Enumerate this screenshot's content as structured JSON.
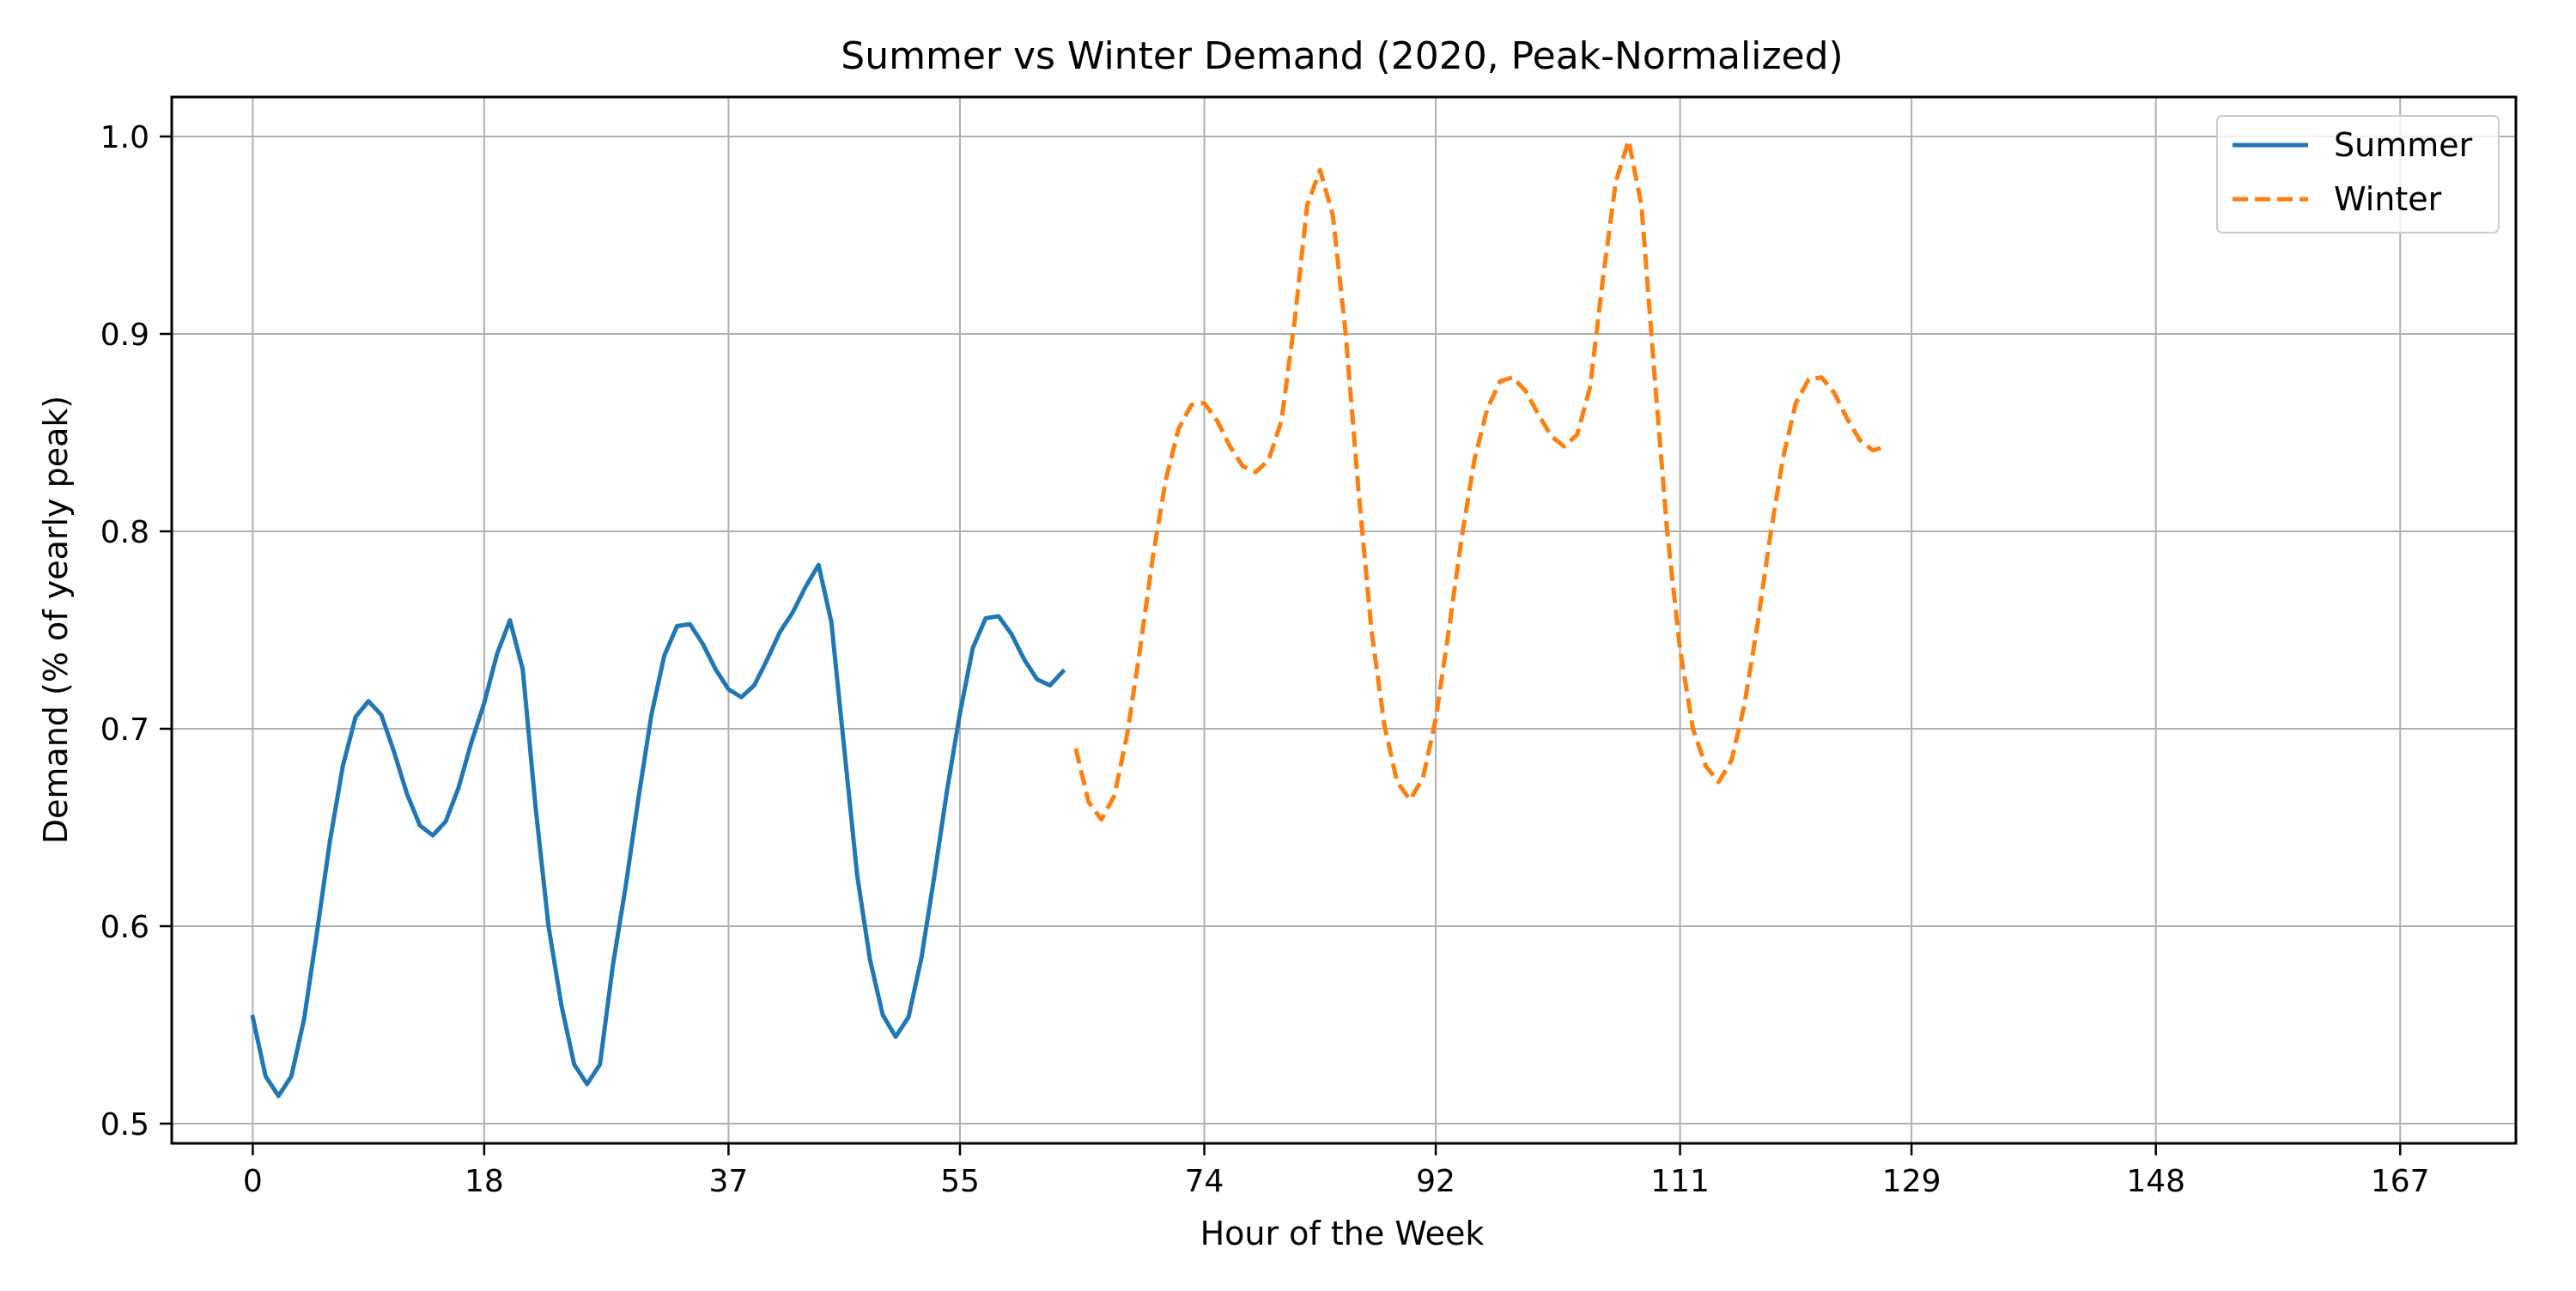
{
  "chart_data": {
    "type": "line",
    "title": "Summer vs Winter Demand (2020, Peak-Normalized)",
    "xlabel": "Hour of the Week",
    "ylabel": "Demand (% of yearly peak)",
    "xlim": [
      -6.3,
      176
    ],
    "ylim": [
      0.49,
      1.02
    ],
    "x_ticks": [
      0,
      18,
      37,
      55,
      74,
      92,
      111,
      129,
      148,
      167
    ],
    "y_ticks": [
      0.5,
      0.6,
      0.7,
      0.8,
      0.9,
      1.0
    ],
    "y_tick_labels": [
      "0.5",
      "0.6",
      "0.7",
      "0.8",
      "0.9",
      "1.0"
    ],
    "grid": true,
    "legend_position": "top-right",
    "series": [
      {
        "name": "Summer",
        "color": "#1f77b4",
        "style": "solid",
        "x": [
          0,
          1,
          2,
          3,
          4,
          5,
          6,
          7,
          8,
          9,
          10,
          11,
          12,
          13,
          14,
          15,
          16,
          17,
          18,
          19,
          20,
          21,
          22,
          23,
          24,
          25,
          26,
          27,
          28,
          29,
          30,
          31,
          32,
          33,
          34,
          35,
          36,
          37,
          38,
          39,
          40,
          41,
          42,
          43,
          44,
          45,
          46,
          47,
          48,
          49,
          50,
          51,
          52,
          53,
          54,
          55,
          56,
          57,
          58,
          59,
          60,
          61,
          62,
          63
        ],
        "values": [
          0.554,
          0.524,
          0.514,
          0.524,
          0.553,
          0.597,
          0.643,
          0.681,
          0.706,
          0.714,
          0.707,
          0.688,
          0.667,
          0.651,
          0.646,
          0.653,
          0.67,
          0.693,
          0.713,
          0.738,
          0.755,
          0.73,
          0.66,
          0.6,
          0.56,
          0.53,
          0.52,
          0.53,
          0.58,
          0.62,
          0.665,
          0.707,
          0.737,
          0.752,
          0.753,
          0.743,
          0.73,
          0.72,
          0.716,
          0.722,
          0.735,
          0.749,
          0.759,
          0.772,
          0.783,
          0.754,
          0.69,
          0.626,
          0.583,
          0.555,
          0.544,
          0.554,
          0.584,
          0.625,
          0.669,
          0.708,
          0.741,
          0.756,
          0.757,
          0.748,
          0.735,
          0.725,
          0.722,
          0.729
        ]
      },
      {
        "name": "Winter",
        "color": "#ff7f0e",
        "style": "dashed",
        "x": [
          64,
          65,
          66,
          67,
          68,
          69,
          70,
          71,
          72,
          73,
          74,
          75,
          76,
          77,
          78,
          79,
          80,
          81,
          82,
          83,
          84,
          85,
          86,
          87,
          88,
          89,
          90,
          91,
          92,
          93,
          94,
          95,
          96,
          97,
          98,
          99,
          100,
          101,
          102,
          103,
          104,
          105,
          106,
          107,
          108,
          109,
          110,
          111,
          112,
          113,
          114,
          115,
          116,
          117,
          118,
          119,
          120,
          121,
          122,
          123,
          124,
          125,
          126,
          127
        ],
        "values": [
          0.69,
          0.663,
          0.654,
          0.666,
          0.697,
          0.74,
          0.787,
          0.826,
          0.852,
          0.864,
          0.865,
          0.856,
          0.843,
          0.833,
          0.83,
          0.836,
          0.856,
          0.905,
          0.965,
          0.983,
          0.96,
          0.9,
          0.82,
          0.75,
          0.702,
          0.673,
          0.664,
          0.675,
          0.705,
          0.749,
          0.796,
          0.836,
          0.862,
          0.876,
          0.878,
          0.871,
          0.859,
          0.848,
          0.843,
          0.849,
          0.873,
          0.928,
          0.977,
          0.998,
          0.965,
          0.88,
          0.8,
          0.74,
          0.7,
          0.681,
          0.673,
          0.684,
          0.712,
          0.752,
          0.797,
          0.837,
          0.865,
          0.877,
          0.878,
          0.87,
          0.857,
          0.846,
          0.841,
          0.843
        ]
      }
    ]
  }
}
